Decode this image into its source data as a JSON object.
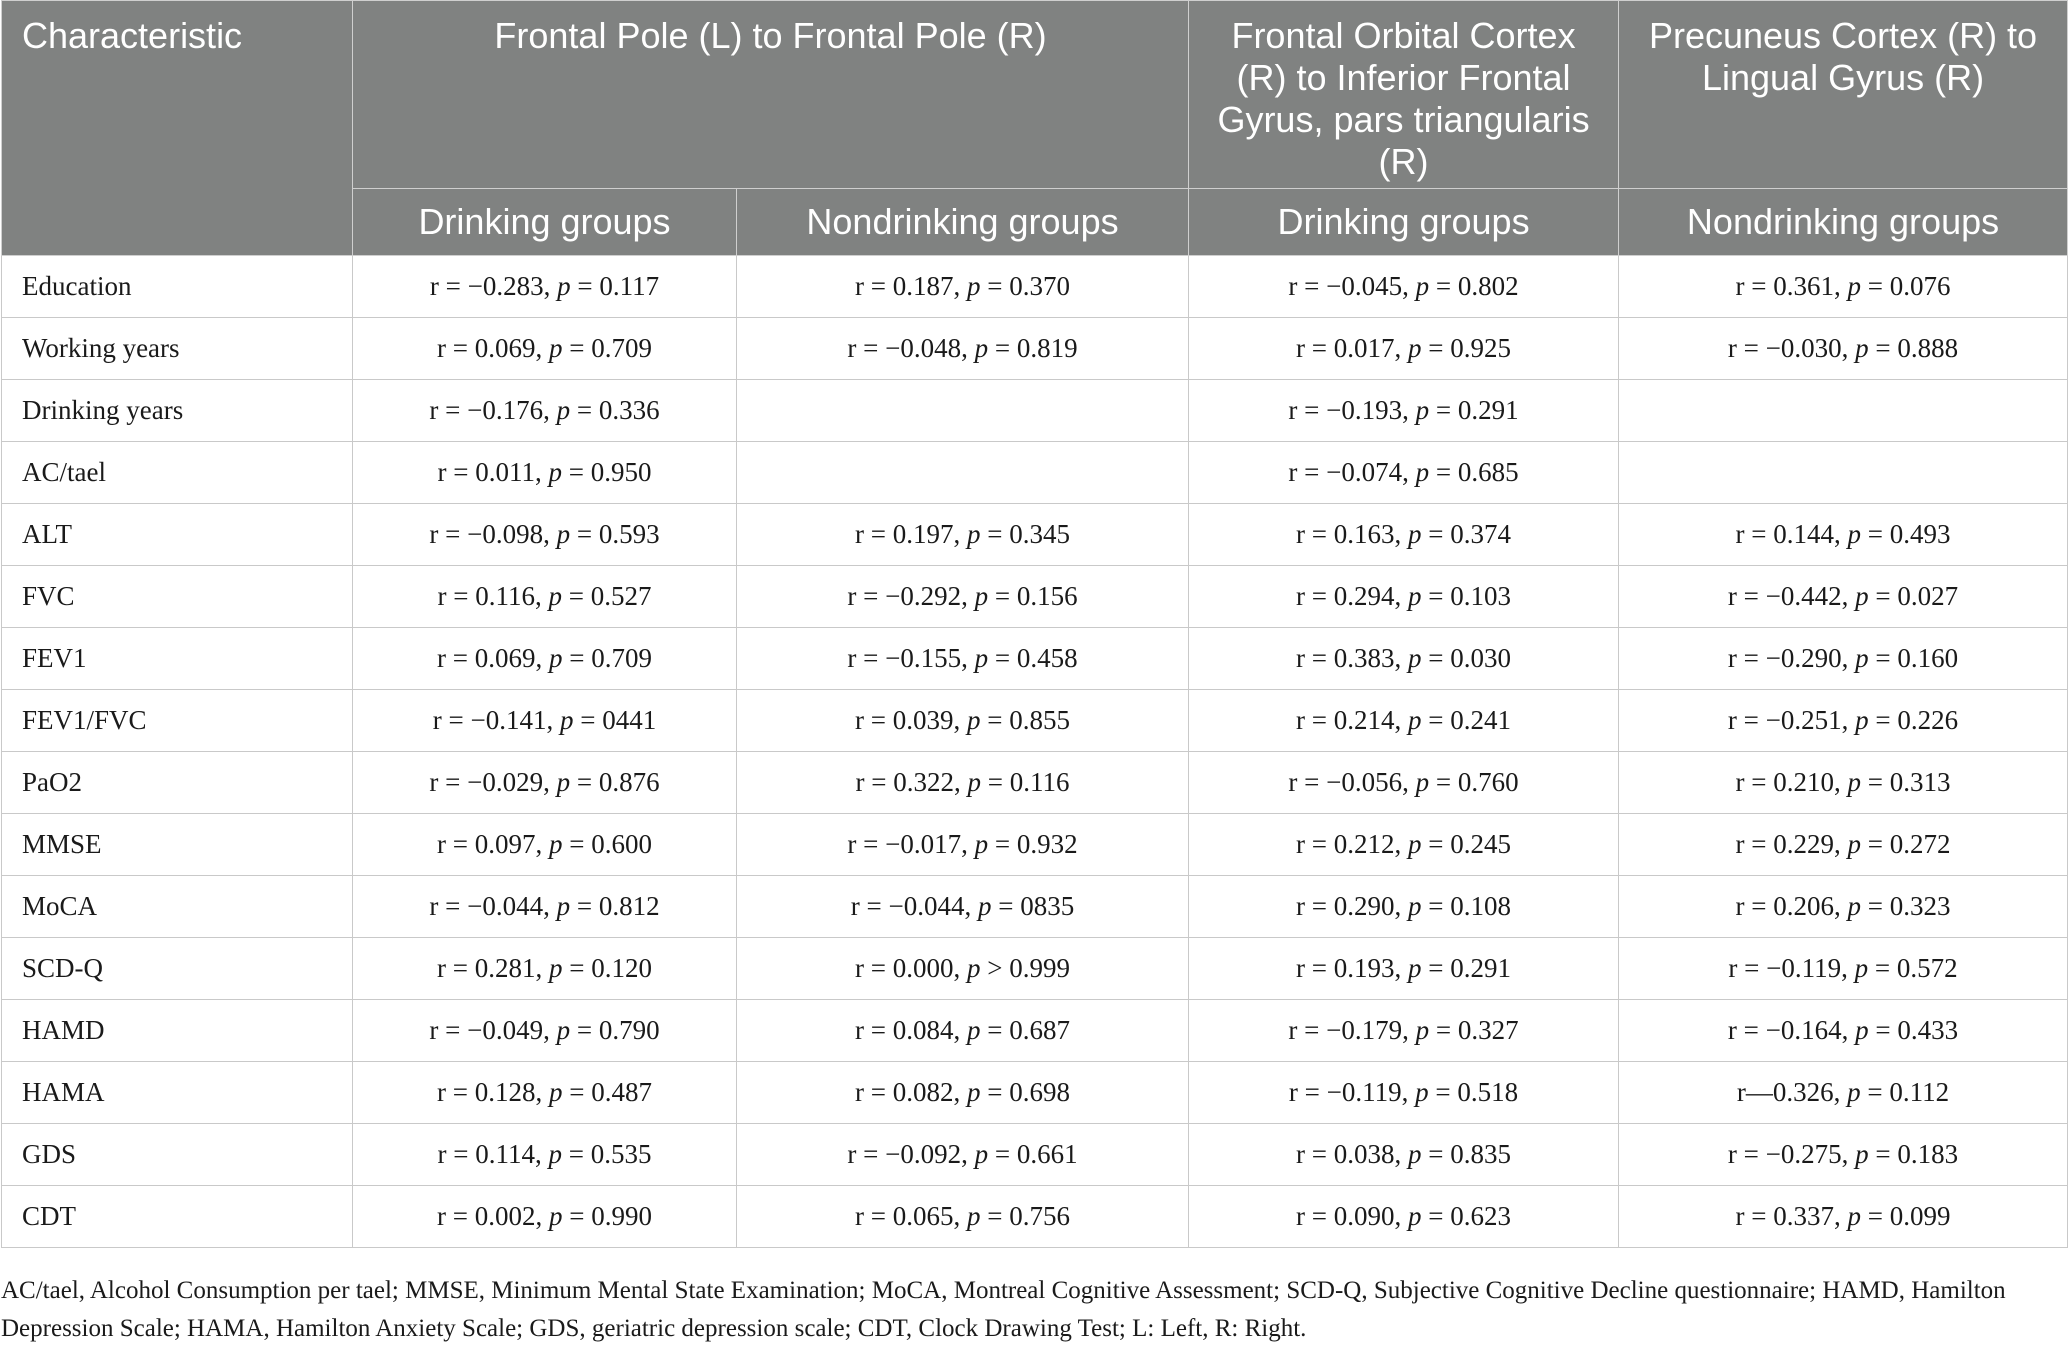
{
  "header": {
    "characteristic": "Characteristic",
    "group1": "Frontal Pole (L) to Frontal Pole (R)",
    "group2": "Frontal Orbital Cortex (R) to Inferior Frontal Gyrus, pars triangularis (R)",
    "group3": "Precuneus Cortex (R) to Lingual Gyrus (R)",
    "sub1": "Drinking groups",
    "sub2": "Nondrinking groups",
    "sub3": "Drinking groups",
    "sub4": "Nondrinking groups"
  },
  "rows": [
    {
      "label": "Education",
      "cells": [
        [
          "r = −0.283, ",
          "p",
          " = 0.117"
        ],
        [
          "r = 0.187, ",
          "p",
          " = 0.370"
        ],
        [
          "r = −0.045, ",
          "p",
          " = 0.802"
        ],
        [
          "r = 0.361, ",
          "p",
          " = 0.076"
        ]
      ]
    },
    {
      "label": "Working years",
      "cells": [
        [
          "r = 0.069, ",
          "p",
          " = 0.709"
        ],
        [
          "r = −0.048, ",
          "p",
          " = 0.819"
        ],
        [
          "r = 0.017, ",
          "p",
          " = 0.925"
        ],
        [
          "r = −0.030, ",
          "p",
          " = 0.888"
        ]
      ]
    },
    {
      "label": "Drinking years",
      "cells": [
        [
          "r = −0.176, ",
          "p",
          " = 0.336"
        ],
        [
          "",
          "",
          ""
        ],
        [
          "r = −0.193, ",
          "p",
          " = 0.291"
        ],
        [
          "",
          "",
          ""
        ]
      ]
    },
    {
      "label": "AC/tael",
      "cells": [
        [
          "r = 0.011, ",
          "p",
          " = 0.950"
        ],
        [
          "",
          "",
          ""
        ],
        [
          "r = −0.074, ",
          "p",
          " = 0.685"
        ],
        [
          "",
          "",
          ""
        ]
      ]
    },
    {
      "label": "ALT",
      "cells": [
        [
          "r = −0.098, ",
          "p",
          " = 0.593"
        ],
        [
          "r = 0.197, ",
          "p",
          " = 0.345"
        ],
        [
          "r = 0.163, ",
          "p",
          " = 0.374"
        ],
        [
          "r = 0.144, ",
          "p",
          " = 0.493"
        ]
      ]
    },
    {
      "label": "FVC",
      "cells": [
        [
          "r = 0.116, ",
          "p",
          " = 0.527"
        ],
        [
          "r = −0.292, ",
          "p",
          " = 0.156"
        ],
        [
          "r = 0.294, ",
          "p",
          " = 0.103"
        ],
        [
          "r = −0.442, ",
          "p",
          " = 0.027"
        ]
      ]
    },
    {
      "label": "FEV1",
      "cells": [
        [
          "r = 0.069, ",
          "p",
          " = 0.709"
        ],
        [
          "r = −0.155, ",
          "p",
          " = 0.458"
        ],
        [
          "r = 0.383, ",
          "p",
          " = 0.030"
        ],
        [
          "r = −0.290, ",
          "p",
          " = 0.160"
        ]
      ]
    },
    {
      "label": "FEV1/FVC",
      "cells": [
        [
          "r = −0.141, ",
          "p",
          " = 0441"
        ],
        [
          "r = 0.039, ",
          "p",
          " = 0.855"
        ],
        [
          "r = 0.214, ",
          "p",
          " = 0.241"
        ],
        [
          "r = −0.251, ",
          "p",
          " = 0.226"
        ]
      ]
    },
    {
      "label": "PaO2",
      "cells": [
        [
          "r = −0.029, ",
          "p",
          " = 0.876"
        ],
        [
          "r = 0.322, ",
          "p",
          " = 0.116"
        ],
        [
          "r = −0.056, ",
          "p",
          " = 0.760"
        ],
        [
          "r = 0.210, ",
          "p",
          " = 0.313"
        ]
      ]
    },
    {
      "label": "MMSE",
      "cells": [
        [
          "r = 0.097, ",
          "p",
          " = 0.600"
        ],
        [
          "r = −0.017, ",
          "p",
          " = 0.932"
        ],
        [
          "r = 0.212, ",
          "p",
          " = 0.245"
        ],
        [
          "r = 0.229, ",
          "p",
          " = 0.272"
        ]
      ]
    },
    {
      "label": "MoCA",
      "cells": [
        [
          "r = −0.044, ",
          "p",
          " = 0.812"
        ],
        [
          "r = −0.044, ",
          "p",
          " = 0835"
        ],
        [
          "r = 0.290, ",
          "p",
          " = 0.108"
        ],
        [
          "r = 0.206, ",
          "p",
          " = 0.323"
        ]
      ]
    },
    {
      "label": "SCD-Q",
      "cells": [
        [
          "r = 0.281, ",
          "p",
          " = 0.120"
        ],
        [
          "r = 0.000, ",
          "p",
          " > 0.999"
        ],
        [
          "r = 0.193, ",
          "p",
          " = 0.291"
        ],
        [
          "r = −0.119, ",
          "p",
          " = 0.572"
        ]
      ]
    },
    {
      "label": "HAMD",
      "cells": [
        [
          "r = −0.049, ",
          "p",
          " = 0.790"
        ],
        [
          "r = 0.084, ",
          "p",
          " = 0.687"
        ],
        [
          "r = −0.179, ",
          "p",
          " = 0.327"
        ],
        [
          "r = −0.164, ",
          "p",
          " = 0.433"
        ]
      ]
    },
    {
      "label": "HAMA",
      "cells": [
        [
          "r = 0.128, ",
          "p",
          " = 0.487"
        ],
        [
          "r = 0.082, ",
          "p",
          " = 0.698"
        ],
        [
          "r = −0.119, ",
          "p",
          " = 0.518"
        ],
        [
          "r—0.326, ",
          "p",
          " = 0.112"
        ]
      ]
    },
    {
      "label": "GDS",
      "cells": [
        [
          "r = 0.114, ",
          "p",
          " = 0.535"
        ],
        [
          "r = −0.092, ",
          "p",
          " = 0.661"
        ],
        [
          "r = 0.038, ",
          "p",
          " = 0.835"
        ],
        [
          "r = −0.275, ",
          "p",
          " = 0.183"
        ]
      ]
    },
    {
      "label": "CDT",
      "cells": [
        [
          "r = 0.002, ",
          "p",
          " = 0.990"
        ],
        [
          "r = 0.065, ",
          "p",
          " = 0.756"
        ],
        [
          "r = 0.090, ",
          "p",
          " = 0.623"
        ],
        [
          "r = 0.337, ",
          "p",
          " = 0.099"
        ]
      ]
    }
  ],
  "footnote": "AC/tael, Alcohol Consumption per tael; MMSE, Minimum Mental State Examination; MoCA, Montreal Cognitive Assessment; SCD-Q, Subjective Cognitive Decline questionnaire; HAMD, Hamilton Depression Scale; HAMA, Hamilton Anxiety Scale; GDS, geriatric depression scale; CDT, Clock Drawing Test; L: Left, R: Right."
}
